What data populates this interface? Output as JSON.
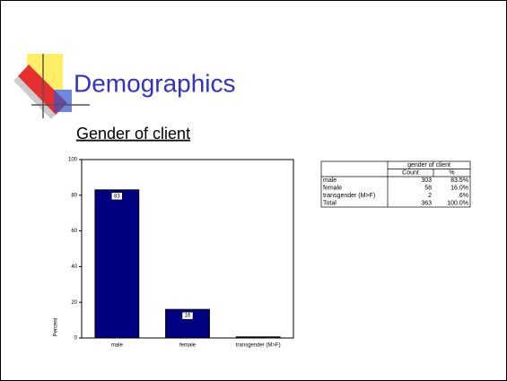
{
  "slide": {
    "title": "Demographics",
    "subtitle": "Gender of client"
  },
  "chart_data": {
    "type": "bar",
    "categories": [
      "male",
      "female",
      "transgender (M>F)"
    ],
    "values": [
      83,
      16,
      0.6
    ],
    "value_labels": [
      "83",
      "16",
      null
    ],
    "color": "#000080",
    "ylabel": "Percent",
    "ylim": [
      0,
      100
    ],
    "yticks": [
      0,
      20,
      40,
      60,
      80,
      100
    ]
  },
  "table": {
    "group_header": "gender of client",
    "columns": [
      "Count",
      "%"
    ],
    "rows": [
      [
        "male",
        "303",
        "83.5%"
      ],
      [
        "female",
        "58",
        "16.0%"
      ],
      [
        "transgender (M>F)",
        "2",
        ".6%"
      ],
      [
        "Total",
        "363",
        "100.0%"
      ]
    ]
  }
}
